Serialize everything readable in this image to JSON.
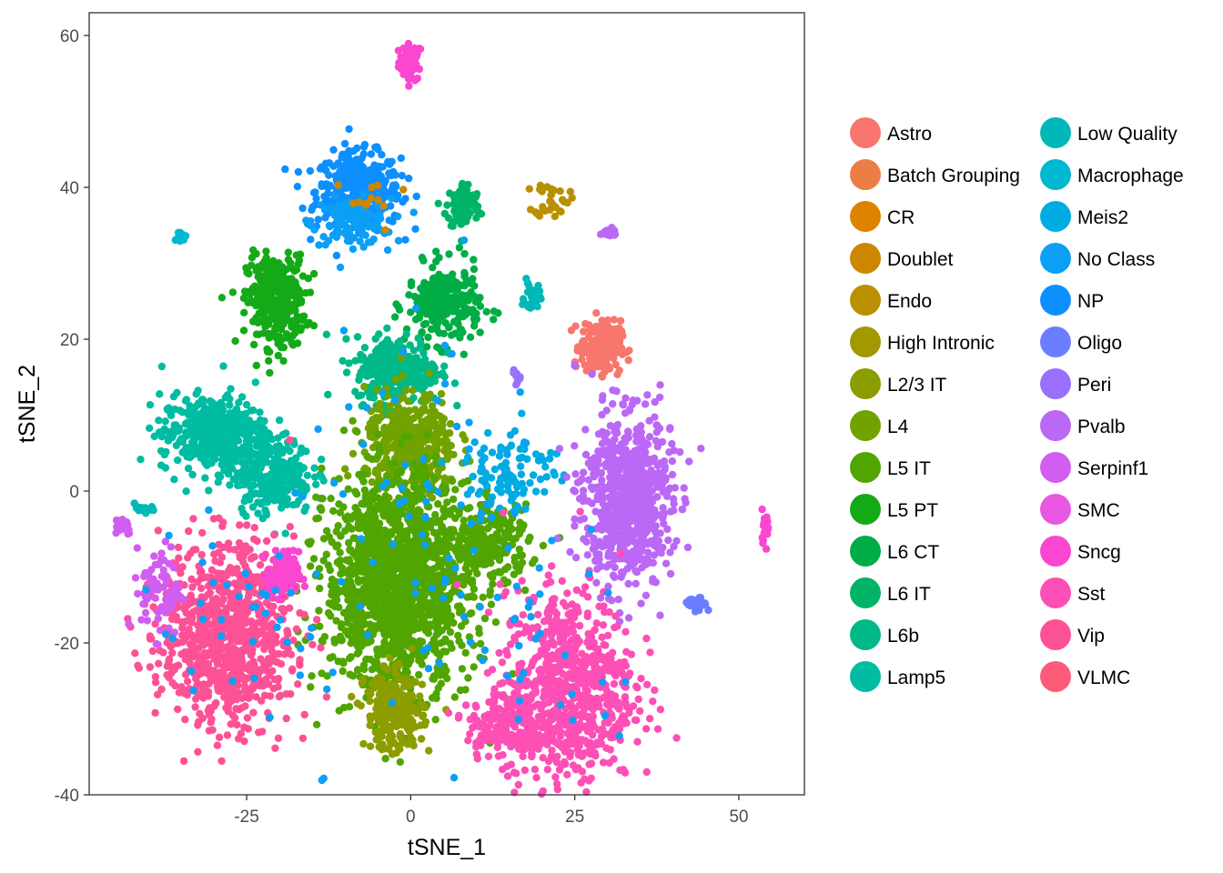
{
  "chart_data": {
    "type": "scatter",
    "xlabel": "tSNE_1",
    "ylabel": "tSNE_2",
    "xlim": [
      -49,
      60
    ],
    "ylim": [
      -40,
      63
    ],
    "x_ticks": [
      -25,
      0,
      25,
      50
    ],
    "x_tick_labels": [
      "-25",
      "0",
      "25",
      "50"
    ],
    "y_ticks": [
      -40,
      -20,
      0,
      20,
      40,
      60
    ],
    "y_tick_labels": [
      "-40",
      "-20",
      "0",
      "20",
      "40",
      "60"
    ],
    "grid": false,
    "legend_position": "right",
    "series": [
      {
        "name": "Astro",
        "color": "#F8766D"
      },
      {
        "name": "Batch Grouping",
        "color": "#EC7D45"
      },
      {
        "name": "CR",
        "color": "#DE8200"
      },
      {
        "name": "Doublet",
        "color": "#CD8600"
      },
      {
        "name": "Endo",
        "color": "#B99000"
      },
      {
        "name": "High Intronic",
        "color": "#A39800"
      },
      {
        "name": "L2/3 IT",
        "color": "#8C9D00"
      },
      {
        "name": "L4",
        "color": "#72A200"
      },
      {
        "name": "L5 IT",
        "color": "#50A500"
      },
      {
        "name": "L5 PT",
        "color": "#14AA17"
      },
      {
        "name": "L6 CT",
        "color": "#00AD45"
      },
      {
        "name": "L6 IT",
        "color": "#00B467"
      },
      {
        "name": "L6b",
        "color": "#00B888"
      },
      {
        "name": "Lamp5",
        "color": "#00BCA2"
      },
      {
        "name": "Low Quality",
        "color": "#00B8B8"
      },
      {
        "name": "Macrophage",
        "color": "#00B8D2"
      },
      {
        "name": "Meis2",
        "color": "#00ABE3"
      },
      {
        "name": "No Class",
        "color": "#0C9FF6"
      },
      {
        "name": "NP",
        "color": "#0E8FFF"
      },
      {
        "name": "Oligo",
        "color": "#6A7EFF"
      },
      {
        "name": "Peri",
        "color": "#9A70FF"
      },
      {
        "name": "Pvalb",
        "color": "#BA68F5"
      },
      {
        "name": "Serpinf1",
        "color": "#D15EF0"
      },
      {
        "name": "SMC",
        "color": "#E858E0"
      },
      {
        "name": "Sncg",
        "color": "#FA46D0"
      },
      {
        "name": "Sst",
        "color": "#FD4FB5"
      },
      {
        "name": "Vip",
        "color": "#FD5196"
      },
      {
        "name": "VLMC",
        "color": "#FB5A78"
      }
    ],
    "clusters": [
      {
        "series": "Sncg",
        "cx": 0,
        "cy": 56.5,
        "sx": 0.9,
        "sy": 1.2,
        "n": 60
      },
      {
        "series": "NP",
        "cx": -8,
        "cy": 39.5,
        "sx": 3.2,
        "sy": 2.5,
        "n": 420
      },
      {
        "series": "No Class",
        "cx": -9,
        "cy": 35.5,
        "sx": 3,
        "sy": 1.5,
        "n": 120
      },
      {
        "series": "Doublet",
        "cx": -6,
        "cy": 38,
        "sx": 3,
        "sy": 2,
        "n": 12
      },
      {
        "series": "L6 IT",
        "cx": 8,
        "cy": 37.5,
        "sx": 1.3,
        "sy": 1.6,
        "n": 90
      },
      {
        "series": "Endo",
        "cx": 21.5,
        "cy": 38.5,
        "sx": 1.3,
        "sy": 1.2,
        "n": 35
      },
      {
        "series": "Pvalb",
        "cx": 30,
        "cy": 34,
        "sx": 1,
        "sy": 0.3,
        "n": 20
      },
      {
        "series": "L5 PT",
        "cx": -20.5,
        "cy": 25,
        "sx": 2.2,
        "sy": 3,
        "n": 330
      },
      {
        "series": "L6 CT",
        "cx": 5,
        "cy": 24.5,
        "sx": 2.8,
        "sy": 2.6,
        "n": 260
      },
      {
        "series": "Low Quality",
        "cx": 18.5,
        "cy": 25.5,
        "sx": 0.6,
        "sy": 1,
        "n": 30
      },
      {
        "series": "Astro",
        "cx": 29,
        "cy": 19,
        "sx": 1.5,
        "sy": 1.7,
        "n": 230
      },
      {
        "series": "L6b",
        "cx": -2,
        "cy": 16,
        "sx": 3.2,
        "sy": 2.2,
        "n": 300
      },
      {
        "series": "Lamp5",
        "cx": -30,
        "cy": 7.5,
        "sx": 4,
        "sy": 2.5,
        "n": 430
      },
      {
        "series": "Lamp5",
        "cx": -21,
        "cy": 2,
        "sx": 3,
        "sy": 2.5,
        "n": 260
      },
      {
        "series": "L4",
        "cx": 0,
        "cy": 6,
        "sx": 3.5,
        "sy": 3.5,
        "n": 420
      },
      {
        "series": "L5 IT",
        "cx": -2,
        "cy": -12,
        "sx": 5.5,
        "sy": 7,
        "n": 1500
      },
      {
        "series": "L5 IT",
        "cx": 12,
        "cy": -7,
        "sx": 3,
        "sy": 2.5,
        "n": 230
      },
      {
        "series": "L2/3 IT",
        "cx": -2.5,
        "cy": -29,
        "sx": 2.2,
        "sy": 2.5,
        "n": 280
      },
      {
        "series": "Meis2",
        "cx": 15.5,
        "cy": 3,
        "sx": 3.5,
        "sy": 2.8,
        "n": 100
      },
      {
        "series": "Peri",
        "cx": 16,
        "cy": 15,
        "sx": 0.5,
        "sy": 0.7,
        "n": 12
      },
      {
        "series": "Pvalb",
        "cx": 33,
        "cy": -1,
        "sx": 3.4,
        "sy": 5.5,
        "n": 700
      },
      {
        "series": "Vip",
        "cx": -28,
        "cy": -19,
        "sx": 5,
        "sy": 6,
        "n": 900
      },
      {
        "series": "Sncg",
        "cx": -19.5,
        "cy": -11,
        "sx": 1.2,
        "sy": 1.5,
        "n": 110
      },
      {
        "series": "Serpinf1",
        "cx": -38,
        "cy": -13,
        "sx": 1.5,
        "sy": 3,
        "n": 80
      },
      {
        "series": "Serpinf1",
        "cx": -44,
        "cy": -4.5,
        "sx": 0.8,
        "sy": 0.6,
        "n": 40
      },
      {
        "series": "Sst",
        "cx": 24,
        "cy": -26,
        "sx": 5,
        "sy": 6.5,
        "n": 760
      },
      {
        "series": "Sst",
        "cx": 14,
        "cy": -31,
        "sx": 2.8,
        "sy": 2,
        "n": 170
      },
      {
        "series": "Sncg",
        "cx": 54,
        "cy": -4.5,
        "sx": 0.3,
        "sy": 1,
        "n": 25
      },
      {
        "series": "Oligo",
        "cx": 43.5,
        "cy": -15,
        "sx": 0.8,
        "sy": 0.5,
        "n": 25
      },
      {
        "series": "Low Quality",
        "cx": -40.5,
        "cy": -2.5,
        "sx": 0.8,
        "sy": 0.4,
        "n": 20
      },
      {
        "series": "Macrophage",
        "cx": -35,
        "cy": 33.5,
        "sx": 0.3,
        "sy": 0.5,
        "n": 12
      },
      {
        "series": "No Class",
        "cx": 0,
        "cy": -5,
        "sx": 10,
        "sy": 14,
        "n": 80
      },
      {
        "series": "No Class",
        "cx": 20,
        "cy": -20,
        "sx": 8,
        "sy": 10,
        "n": 40
      },
      {
        "series": "No Class",
        "cx": -28,
        "cy": -18,
        "sx": 7,
        "sy": 6,
        "n": 30
      }
    ]
  }
}
